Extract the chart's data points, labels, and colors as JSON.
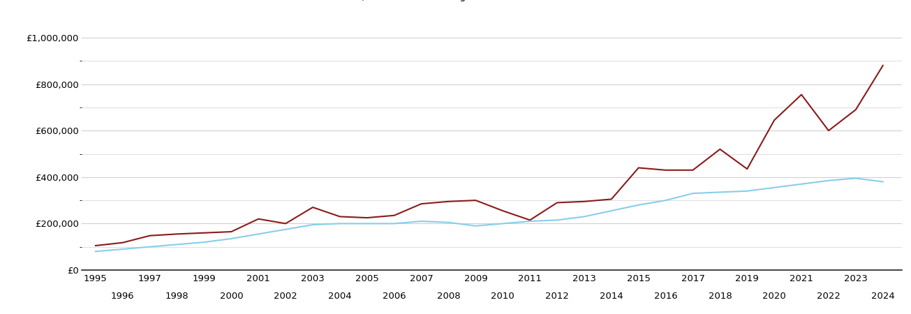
{
  "title": "",
  "color_enfield": "#8B1A1A",
  "color_ew": "#87CEEB",
  "background_color": "#ffffff",
  "grid_color": "#d0d0d0",
  "years_enfield": [
    1995,
    1996,
    1997,
    1998,
    1999,
    2000,
    2001,
    2002,
    2003,
    2004,
    2005,
    2006,
    2007,
    2008,
    2009,
    2010,
    2011,
    2012,
    2013,
    2014,
    2015,
    2016,
    2017,
    2018,
    2019,
    2020,
    2021,
    2022,
    2023,
    2024
  ],
  "values_enfield": [
    105000,
    118000,
    148000,
    155000,
    160000,
    165000,
    220000,
    200000,
    270000,
    230000,
    225000,
    235000,
    285000,
    295000,
    300000,
    255000,
    215000,
    290000,
    295000,
    305000,
    440000,
    430000,
    430000,
    520000,
    435000,
    645000,
    755000,
    600000,
    690000,
    880000
  ],
  "years_ew": [
    1995,
    1996,
    1997,
    1998,
    1999,
    2000,
    2001,
    2002,
    2003,
    2004,
    2005,
    2006,
    2007,
    2008,
    2009,
    2010,
    2011,
    2012,
    2013,
    2014,
    2015,
    2016,
    2017,
    2018,
    2019,
    2020,
    2021,
    2022,
    2023,
    2024
  ],
  "values_ew": [
    80000,
    90000,
    100000,
    110000,
    120000,
    135000,
    155000,
    175000,
    195000,
    200000,
    200000,
    200000,
    210000,
    205000,
    190000,
    200000,
    210000,
    215000,
    230000,
    255000,
    280000,
    300000,
    330000,
    335000,
    340000,
    355000,
    370000,
    385000,
    395000,
    380000
  ],
  "ylim": [
    0,
    1000000
  ],
  "yticks_major": [
    0,
    200000,
    400000,
    600000,
    800000,
    1000000
  ],
  "yticks_minor": [
    100000,
    300000,
    500000,
    700000,
    900000
  ],
  "xlim_left": 1994.5,
  "xlim_right": 2024.7,
  "xticks_top": [
    1995,
    1997,
    1999,
    2001,
    2003,
    2005,
    2007,
    2009,
    2011,
    2013,
    2015,
    2017,
    2019,
    2021,
    2023
  ],
  "xticks_bottom": [
    1996,
    1998,
    2000,
    2002,
    2004,
    2006,
    2008,
    2010,
    2012,
    2014,
    2016,
    2018,
    2020,
    2022,
    2024
  ]
}
